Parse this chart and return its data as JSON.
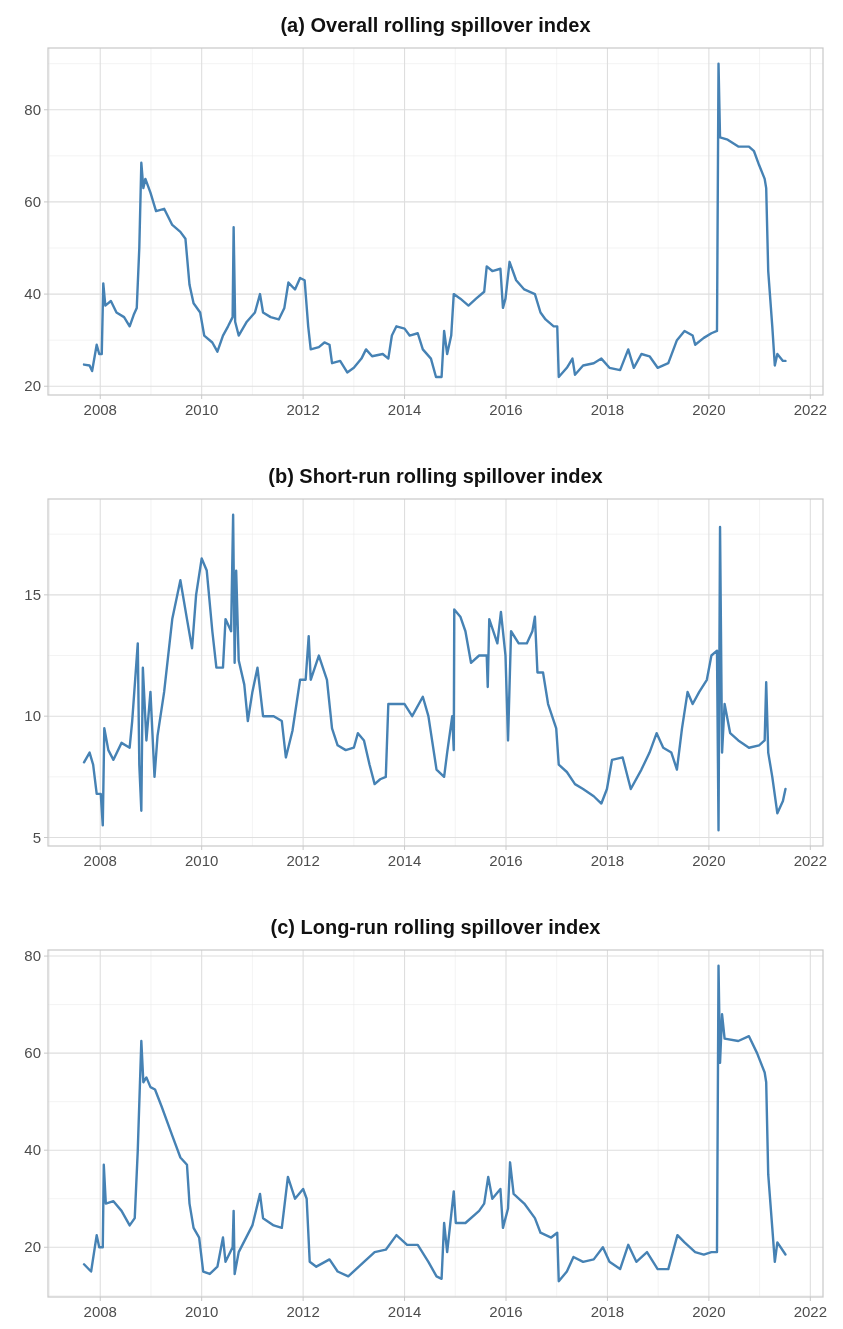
{
  "chart_data": [
    {
      "type": "line",
      "title": "(a) Overall rolling spillover index",
      "xlim": [
        2006.97,
        2022.25
      ],
      "xticks": [
        2008,
        2010,
        2012,
        2014,
        2016,
        2018,
        2020,
        2022
      ],
      "ylim": [
        18.1,
        93.4
      ],
      "yticks": [
        20,
        40,
        60,
        80
      ],
      "grid": true,
      "x": [
        2007.68,
        2007.79,
        2007.84,
        2007.93,
        2007.98,
        2008.03,
        2008.06,
        2008.1,
        2008.21,
        2008.32,
        2008.47,
        2008.58,
        2008.66,
        2008.72,
        2008.77,
        2008.81,
        2008.85,
        2008.89,
        2008.99,
        2009.1,
        2009.26,
        2009.42,
        2009.58,
        2009.68,
        2009.76,
        2009.84,
        2009.97,
        2010.05,
        2010.21,
        2010.31,
        2010.42,
        2010.52,
        2010.61,
        2010.63,
        2010.66,
        2010.73,
        2010.89,
        2011.05,
        2011.15,
        2011.21,
        2011.36,
        2011.52,
        2011.63,
        2011.71,
        2011.84,
        2011.94,
        2012.03,
        2012.1,
        2012.15,
        2012.31,
        2012.42,
        2012.52,
        2012.57,
        2012.73,
        2012.87,
        2013.0,
        2013.15,
        2013.24,
        2013.36,
        2013.57,
        2013.68,
        2013.75,
        2013.84,
        2014.0,
        2014.1,
        2014.26,
        2014.36,
        2014.52,
        2014.62,
        2014.73,
        2014.78,
        2014.84,
        2014.92,
        2014.97,
        2015.1,
        2015.26,
        2015.41,
        2015.57,
        2015.62,
        2015.73,
        2015.89,
        2015.94,
        2015.99,
        2016.07,
        2016.2,
        2016.36,
        2016.57,
        2016.68,
        2016.78,
        2016.94,
        2017.01,
        2017.04,
        2017.2,
        2017.31,
        2017.36,
        2017.52,
        2017.73,
        2017.88,
        2018.04,
        2018.25,
        2018.41,
        2018.52,
        2018.67,
        2018.83,
        2018.99,
        2019.2,
        2019.37,
        2019.52,
        2019.68,
        2019.73,
        2019.9,
        2020.05,
        2020.16,
        2020.19,
        2020.22,
        2020.37,
        2020.58,
        2020.79,
        2020.89,
        2020.99,
        2021.1,
        2021.13,
        2021.17,
        2021.25,
        2021.3,
        2021.35,
        2021.46,
        2021.51
      ],
      "series": [
        {
          "color": "#4682b4",
          "values": [
            24.7,
            24.5,
            23.3,
            29,
            27,
            27,
            42.3,
            37.5,
            38.5,
            36,
            35,
            33,
            35.5,
            37,
            50,
            68.5,
            63,
            65,
            62,
            58,
            58.5,
            55,
            53.5,
            52,
            42,
            38,
            36,
            31,
            29.5,
            27.5,
            31,
            33,
            35,
            54.5,
            34,
            31,
            34,
            36,
            40,
            36,
            35,
            34.5,
            37,
            42.5,
            41,
            43.5,
            43,
            33,
            28,
            28.5,
            29.5,
            29,
            25,
            25.5,
            23,
            24,
            26,
            28,
            26.5,
            27,
            26,
            31,
            33,
            32.5,
            31,
            31.5,
            28,
            26,
            22,
            22,
            32,
            27,
            31,
            40,
            39,
            37.5,
            39,
            40.5,
            46,
            45,
            45.5,
            37,
            39,
            47,
            43,
            41,
            40,
            36,
            34.5,
            33,
            33,
            22,
            24,
            26,
            22.5,
            24.5,
            25,
            26,
            24,
            23.5,
            28,
            24,
            27,
            26.5,
            24,
            25,
            30,
            32,
            31,
            29,
            30.5,
            31.5,
            32,
            90,
            74,
            73.5,
            72,
            72,
            71,
            68,
            65,
            63,
            45,
            33,
            24.5,
            27,
            25.5,
            25.5
          ]
        }
      ]
    },
    {
      "type": "line",
      "title": "(b) Short-run rolling spillover index",
      "xlim": [
        2006.97,
        2022.25
      ],
      "xticks": [
        2008,
        2010,
        2012,
        2014,
        2016,
        2018,
        2020,
        2022
      ],
      "ylim": [
        4.65,
        18.95
      ],
      "yticks": [
        5,
        10,
        15
      ],
      "grid": true,
      "x": [
        2007.68,
        2007.79,
        2007.86,
        2007.93,
        2008.01,
        2008.05,
        2008.08,
        2008.16,
        2008.26,
        2008.42,
        2008.58,
        2008.63,
        2008.74,
        2008.77,
        2008.81,
        2008.84,
        2008.91,
        2008.99,
        2009.07,
        2009.13,
        2009.26,
        2009.42,
        2009.58,
        2009.71,
        2009.81,
        2009.89,
        2010.0,
        2010.1,
        2010.21,
        2010.29,
        2010.42,
        2010.47,
        2010.58,
        2010.62,
        2010.65,
        2010.68,
        2010.73,
        2010.84,
        2010.91,
        2011.0,
        2011.1,
        2011.21,
        2011.42,
        2011.58,
        2011.66,
        2011.79,
        2011.94,
        2012.05,
        2012.11,
        2012.15,
        2012.31,
        2012.47,
        2012.57,
        2012.68,
        2012.84,
        2013.0,
        2013.08,
        2013.2,
        2013.31,
        2013.41,
        2013.52,
        2013.63,
        2013.68,
        2013.79,
        2014.0,
        2014.15,
        2014.36,
        2014.47,
        2014.63,
        2014.78,
        2014.84,
        2014.94,
        2014.97,
        2014.98,
        2015.1,
        2015.2,
        2015.31,
        2015.47,
        2015.62,
        2015.64,
        2015.67,
        2015.83,
        2015.9,
        2015.99,
        2016.04,
        2016.1,
        2016.25,
        2016.41,
        2016.52,
        2016.57,
        2016.62,
        2016.73,
        2016.83,
        2016.99,
        2017.04,
        2017.2,
        2017.36,
        2017.52,
        2017.73,
        2017.88,
        2017.99,
        2018.09,
        2018.3,
        2018.46,
        2018.67,
        2018.83,
        2018.97,
        2019.1,
        2019.26,
        2019.37,
        2019.47,
        2019.58,
        2019.68,
        2019.81,
        2019.96,
        2020.05,
        2020.16,
        2020.19,
        2020.22,
        2020.26,
        2020.31,
        2020.42,
        2020.58,
        2020.79,
        2020.99,
        2021.1,
        2021.13,
        2021.17,
        2021.25,
        2021.35,
        2021.46,
        2021.51
      ],
      "series": [
        {
          "color": "#4682b4",
          "values": [
            8.1,
            8.5,
            8,
            6.8,
            6.8,
            5.5,
            9.5,
            8.6,
            8.2,
            8.9,
            8.7,
            9.8,
            13,
            8,
            6.1,
            12,
            9,
            11,
            7.5,
            9.2,
            11,
            14,
            15.6,
            14,
            12.8,
            15,
            16.5,
            16,
            13.5,
            12,
            12,
            14,
            13.5,
            18.3,
            12.2,
            16,
            12.3,
            11.3,
            9.8,
            11,
            12,
            10,
            10,
            9.8,
            8.3,
            9.4,
            11.5,
            11.5,
            13.3,
            11.5,
            12.5,
            11.5,
            9.5,
            8.8,
            8.6,
            8.7,
            9.3,
            9,
            8,
            7.2,
            7.4,
            7.5,
            10.5,
            10.5,
            10.5,
            10,
            10.8,
            10,
            7.8,
            7.5,
            8.5,
            10,
            8.6,
            14.4,
            14.1,
            13.5,
            12.2,
            12.5,
            12.5,
            11.2,
            14,
            13,
            14.3,
            12.5,
            9,
            13.5,
            13,
            13,
            13.5,
            14.1,
            11.8,
            11.8,
            10.5,
            9.5,
            8,
            7.7,
            7.2,
            7,
            6.7,
            6.4,
            7,
            8.2,
            8.3,
            7,
            7.8,
            8.5,
            9.3,
            8.7,
            8.5,
            7.8,
            9.5,
            11,
            10.5,
            11,
            11.5,
            12.5,
            12.7,
            5.3,
            17.8,
            8.5,
            10.5,
            9.3,
            9,
            8.7,
            8.8,
            9,
            11.4,
            8.5,
            7.5,
            6,
            6.5,
            7
          ]
        }
      ]
    },
    {
      "type": "line",
      "title": "(c) Long-run rolling spillover index",
      "xlim": [
        2006.97,
        2022.25
      ],
      "xticks": [
        2008,
        2010,
        2012,
        2014,
        2016,
        2018,
        2020,
        2022
      ],
      "ylim": [
        9.75,
        81.25
      ],
      "yticks": [
        20,
        40,
        60,
        80
      ],
      "grid": true,
      "x": [
        2007.68,
        2007.82,
        2007.93,
        2007.98,
        2008.05,
        2008.07,
        2008.11,
        2008.26,
        2008.42,
        2008.58,
        2008.68,
        2008.74,
        2008.81,
        2008.85,
        2008.91,
        2008.99,
        2009.08,
        2009.21,
        2009.42,
        2009.58,
        2009.71,
        2009.76,
        2009.84,
        2009.95,
        2010.03,
        2010.16,
        2010.31,
        2010.42,
        2010.47,
        2010.61,
        2010.63,
        2010.65,
        2010.73,
        2011.0,
        2011.15,
        2011.21,
        2011.42,
        2011.58,
        2011.7,
        2011.84,
        2012.0,
        2012.07,
        2012.13,
        2012.26,
        2012.52,
        2012.68,
        2012.89,
        2013.2,
        2013.41,
        2013.63,
        2013.84,
        2014.05,
        2014.26,
        2014.47,
        2014.63,
        2014.73,
        2014.78,
        2014.84,
        2014.97,
        2015.01,
        2015.2,
        2015.47,
        2015.57,
        2015.65,
        2015.73,
        2015.89,
        2015.94,
        2016.04,
        2016.08,
        2016.15,
        2016.36,
        2016.57,
        2016.68,
        2016.89,
        2017.01,
        2017.04,
        2017.2,
        2017.33,
        2017.52,
        2017.73,
        2017.91,
        2018.04,
        2018.25,
        2018.41,
        2018.57,
        2018.78,
        2018.99,
        2019.2,
        2019.38,
        2019.52,
        2019.73,
        2019.9,
        2020.05,
        2020.16,
        2020.19,
        2020.22,
        2020.26,
        2020.31,
        2020.58,
        2020.79,
        2020.95,
        2021.1,
        2021.13,
        2021.17,
        2021.25,
        2021.3,
        2021.35,
        2021.51
      ],
      "series": [
        {
          "color": "#4682b4",
          "values": [
            16.5,
            15,
            22.5,
            20,
            20,
            37,
            29,
            29.5,
            27.5,
            24.5,
            26,
            40,
            62.5,
            54,
            55,
            53,
            52.5,
            49,
            43,
            38.5,
            37,
            29,
            24,
            22,
            15,
            14.5,
            16,
            22,
            17,
            20,
            27.5,
            14.5,
            19,
            24.5,
            31,
            26,
            24.5,
            24,
            34.5,
            30,
            32,
            30,
            17,
            16,
            17.5,
            15,
            14,
            17,
            19,
            19.5,
            22.5,
            20.5,
            20.5,
            17,
            14,
            13.5,
            25,
            19,
            31.5,
            25,
            25,
            27.5,
            29,
            34.5,
            30,
            32,
            24,
            28,
            37.5,
            31,
            29,
            26,
            23,
            22,
            23,
            13,
            15,
            18,
            17,
            17.5,
            20,
            17,
            15.5,
            20.5,
            17,
            19,
            15.5,
            15.5,
            22.5,
            21,
            19,
            18.5,
            19,
            19,
            78,
            58,
            68,
            63,
            62.5,
            63.5,
            60,
            56,
            54,
            35,
            24,
            17,
            21,
            18.5
          ]
        }
      ]
    }
  ]
}
